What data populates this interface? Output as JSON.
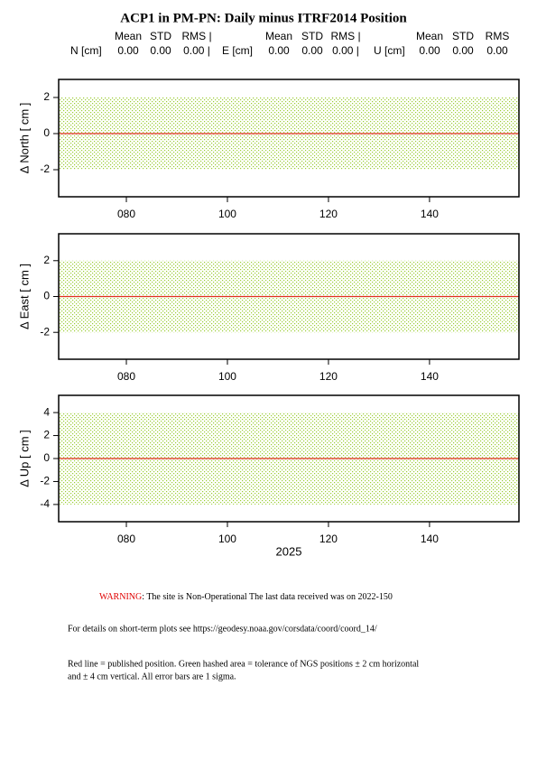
{
  "title": "ACP1 in PM-PN: Daily minus ITRF2014 Position",
  "stats": [
    {
      "label": "N [cm]",
      "columns": [
        "Mean",
        "STD",
        "RMS |"
      ],
      "values": [
        "0.00",
        "0.00",
        "0.00 |"
      ]
    },
    {
      "label": "E [cm]",
      "columns": [
        "Mean",
        "STD",
        "RMS |"
      ],
      "values": [
        "0.00",
        "0.00",
        "0.00 |"
      ]
    },
    {
      "label": "U [cm]",
      "columns": [
        "Mean",
        "STD",
        "RMS"
      ],
      "values": [
        "0.00",
        "0.00",
        "0.00"
      ]
    }
  ],
  "chart_data": [
    {
      "type": "band",
      "ylabel": "Δ North  [ cm ]",
      "ylim": [
        -3.5,
        3
      ],
      "yticks": [
        -2,
        0,
        2
      ],
      "xlim": [
        66.6,
        157.7
      ],
      "xticks": [
        {
          "value": 80,
          "label": "080"
        },
        100,
        120,
        140
      ],
      "line_value": 0,
      "line_color": "#e03020",
      "band": [
        -2,
        2
      ],
      "band_color": "#9acd32"
    },
    {
      "type": "band",
      "ylabel": "Δ East  [ cm ]",
      "ylim": [
        -3.5,
        3.5
      ],
      "yticks": [
        -2,
        0,
        2
      ],
      "xlim": [
        66.6,
        157.7
      ],
      "xticks": [
        {
          "value": 80,
          "label": "080"
        },
        100,
        120,
        140
      ],
      "line_value": 0,
      "line_color": "#e03020",
      "band": [
        -2,
        2
      ],
      "band_color": "#9acd32"
    },
    {
      "type": "band",
      "ylabel": "Δ Up  [ cm ]",
      "ylim": [
        -5.5,
        5.5
      ],
      "yticks": [
        -4,
        -2,
        0,
        2,
        4
      ],
      "xlim": [
        66.6,
        157.7
      ],
      "xticks": [
        {
          "value": 80,
          "label": "080"
        },
        100,
        120,
        140
      ],
      "xlabel": "2025",
      "line_value": 0,
      "line_color": "#e03020",
      "band": [
        -4,
        4
      ],
      "band_color": "#9acd32"
    }
  ],
  "notes": {
    "warning_label": "WARNING",
    "warning_text": ": The site is Non-Operational The last data received was on 2022-150",
    "details": "For details on short-term plots see https://geodesy.noaa.gov/corsdata/coord/coord_14/",
    "legend_line1": "Red line = published position.  Green hashed area = tolerance of NGS positions ± 2 cm horizontal",
    "legend_line2": "and ± 4 cm vertical.  All error bars are 1 sigma."
  }
}
